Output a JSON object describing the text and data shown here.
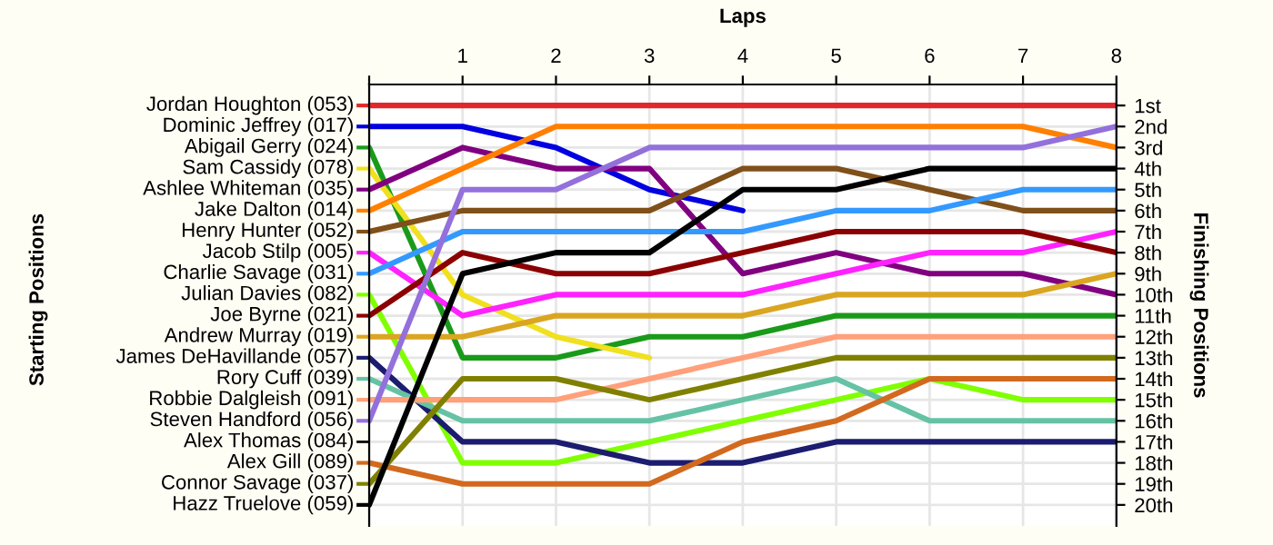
{
  "chart_data": {
    "type": "line",
    "xlabel": "Laps",
    "ylabel": "Finishing Positions",
    "x": [
      0,
      1,
      2,
      3,
      4,
      5,
      6,
      7,
      8
    ],
    "xlim": [
      0,
      8
    ],
    "xticks": [
      {
        "value": 0,
        "label": null
      },
      1,
      2,
      3,
      4,
      5,
      6,
      7,
      8
    ],
    "ylim": [
      21,
      0
    ],
    "yticks": [
      {
        "value": 1,
        "label": "1st"
      },
      {
        "value": 2,
        "label": "2nd"
      },
      {
        "value": 3,
        "label": "3rd"
      },
      {
        "value": 4,
        "label": "4th"
      },
      {
        "value": 5,
        "label": "5th"
      },
      {
        "value": 6,
        "label": "6th"
      },
      {
        "value": 7,
        "label": "7th"
      },
      {
        "value": 8,
        "label": "8th"
      },
      {
        "value": 9,
        "label": "9th"
      },
      {
        "value": 10,
        "label": "10th"
      },
      {
        "value": 11,
        "label": "11th"
      },
      {
        "value": 12,
        "label": "12th"
      },
      {
        "value": 13,
        "label": "13th"
      },
      {
        "value": 14,
        "label": "14th"
      },
      {
        "value": 15,
        "label": "15th"
      },
      {
        "value": 16,
        "label": "16th"
      },
      {
        "value": 17,
        "label": "17th"
      },
      {
        "value": 18,
        "label": "18th"
      },
      {
        "value": 19,
        "label": "19th"
      },
      {
        "value": 20,
        "label": "20th"
      }
    ],
    "annotations": [
      "Starting Positions",
      "Alex Thomas (084)"
    ],
    "grid": true,
    "legend": "left",
    "marker": "none",
    "line_style": "solid",
    "series": [
      {
        "name": "Jordan Houghton (053)",
        "color": "#e0282c",
        "values": [
          1,
          1,
          1,
          1,
          1,
          1,
          1,
          1,
          1
        ]
      },
      {
        "name": "Dominic Jeffrey (017)",
        "color": "#0000e0",
        "values": [
          2,
          2,
          3,
          5,
          6,
          null,
          null,
          null,
          null
        ]
      },
      {
        "name": "Abigail Gerry (024)",
        "color": "#1a9a1a",
        "values": [
          3,
          13,
          13,
          12,
          12,
          11,
          11,
          11,
          11
        ]
      },
      {
        "name": "Sam Cassidy (078)",
        "color": "#f0e020",
        "values": [
          4,
          10,
          12,
          13,
          null,
          null,
          null,
          null,
          null
        ]
      },
      {
        "name": "Ashlee Whiteman (035)",
        "color": "#800080",
        "values": [
          5,
          3,
          4,
          4,
          9,
          8,
          9,
          9,
          10
        ]
      },
      {
        "name": "Jake Dalton (014)",
        "color": "#ff8000",
        "values": [
          6,
          4,
          2,
          2,
          2,
          2,
          2,
          2,
          3
        ]
      },
      {
        "name": "Henry Hunter (052)",
        "color": "#80501a",
        "values": [
          7,
          6,
          6,
          6,
          4,
          4,
          5,
          6,
          6
        ]
      },
      {
        "name": "Jacob Stilp (005)",
        "color": "#ff22ff",
        "values": [
          8,
          11,
          10,
          10,
          10,
          9,
          8,
          8,
          7
        ]
      },
      {
        "name": "Charlie Savage (031)",
        "color": "#3399ff",
        "values": [
          9,
          7,
          7,
          7,
          7,
          6,
          6,
          5,
          5
        ]
      },
      {
        "name": "Julian Davies (082)",
        "color": "#80ff00",
        "values": [
          10,
          18,
          18,
          17,
          16,
          15,
          14,
          15,
          15
        ]
      },
      {
        "name": "Joe Byrne (021)",
        "color": "#8b0000",
        "values": [
          11,
          8,
          9,
          9,
          8,
          7,
          7,
          7,
          8
        ]
      },
      {
        "name": "Andrew Murray (019)",
        "color": "#daa520",
        "values": [
          12,
          12,
          11,
          11,
          11,
          10,
          10,
          10,
          9
        ]
      },
      {
        "name": "James DeHavillande (057)",
        "color": "#1c1c70",
        "values": [
          13,
          17,
          17,
          18,
          18,
          17,
          17,
          17,
          17
        ]
      },
      {
        "name": "Rory Cuff (039)",
        "color": "#66c2a5",
        "values": [
          14,
          16,
          16,
          16,
          15,
          14,
          16,
          16,
          16
        ]
      },
      {
        "name": "Robbie Dalgleish (091)",
        "color": "#ffa07a",
        "values": [
          15,
          15,
          15,
          14,
          13,
          12,
          12,
          12,
          12
        ]
      },
      {
        "name": "Steven Handford (056)",
        "color": "#9370db",
        "values": [
          16,
          5,
          5,
          3,
          3,
          3,
          3,
          3,
          2
        ]
      },
      {
        "name": "Alex Gill (089)",
        "color": "#d2691e",
        "values": [
          18,
          19,
          19,
          19,
          17,
          16,
          14,
          14,
          14
        ]
      },
      {
        "name": "Connor Savage (037)",
        "color": "#808000",
        "values": [
          19,
          14,
          14,
          15,
          14,
          13,
          13,
          13,
          13
        ]
      },
      {
        "name": "Hazz Truelove (059)",
        "color": "#000000",
        "values": [
          20,
          9,
          8,
          8,
          5,
          5,
          4,
          4,
          4
        ]
      }
    ]
  }
}
